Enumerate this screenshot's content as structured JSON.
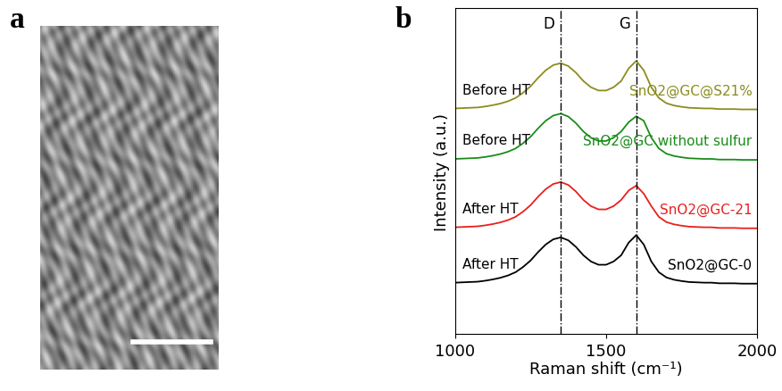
{
  "chart_data": [
    {
      "type": "image",
      "panel": "a"
    },
    {
      "type": "line",
      "panel": "b",
      "x_label": "Raman shift (cm⁻¹)",
      "y_label": "Intensity (a.u.)",
      "x": [
        1000,
        1025,
        1050,
        1075,
        1100,
        1125,
        1150,
        1175,
        1200,
        1225,
        1250,
        1275,
        1300,
        1325,
        1350,
        1375,
        1400,
        1425,
        1450,
        1475,
        1500,
        1525,
        1550,
        1575,
        1600,
        1625,
        1650,
        1675,
        1700,
        1725,
        1750,
        1775,
        1800,
        1825,
        1850,
        1875,
        1900,
        1925,
        1950,
        1975,
        2000
      ],
      "xlim": [
        1000,
        2000
      ],
      "xticks": [
        1000,
        1500,
        2000
      ],
      "ylim": [
        0,
        10
      ],
      "yticks": [],
      "tick_labels": "x",
      "grid": false,
      "reference_lines": [
        {
          "value": 1350,
          "label": "D"
        },
        {
          "value": 1600,
          "label": "G"
        }
      ],
      "series": [
        {
          "name": "SnO2@GC@S21%",
          "annotation": "Before HT",
          "color": "#8c8c1e",
          "values": [
            6.92,
            6.93,
            6.94,
            6.95,
            6.98,
            7.02,
            7.07,
            7.14,
            7.24,
            7.4,
            7.6,
            7.86,
            8.09,
            8.25,
            8.31,
            8.22,
            8.02,
            7.76,
            7.57,
            7.47,
            7.47,
            7.57,
            7.76,
            8.15,
            8.38,
            8.09,
            7.57,
            7.24,
            7.08,
            7.01,
            6.97,
            6.94,
            6.93,
            6.92,
            6.92,
            6.9,
            6.9,
            6.9,
            6.89,
            6.89,
            6.89
          ]
        },
        {
          "name": "SnO2@GC without sulfur",
          "annotation": "Before HT",
          "color": "#1a8c1a",
          "values": [
            5.37,
            5.38,
            5.39,
            5.4,
            5.43,
            5.47,
            5.52,
            5.59,
            5.69,
            5.85,
            6.05,
            6.31,
            6.54,
            6.7,
            6.76,
            6.67,
            6.47,
            6.21,
            6.02,
            5.92,
            5.92,
            6.02,
            6.21,
            6.5,
            6.68,
            6.54,
            6.02,
            5.69,
            5.53,
            5.46,
            5.42,
            5.39,
            5.38,
            5.37,
            5.37,
            5.35,
            5.35,
            5.35,
            5.34,
            5.34,
            5.34
          ]
        },
        {
          "name": "SnO2@GC-21",
          "annotation": "After HT",
          "color": "#e8201e",
          "values": [
            3.27,
            3.28,
            3.29,
            3.3,
            3.33,
            3.37,
            3.42,
            3.49,
            3.59,
            3.75,
            3.95,
            4.21,
            4.44,
            4.6,
            4.66,
            4.57,
            4.37,
            4.11,
            3.92,
            3.82,
            3.82,
            3.92,
            4.11,
            4.4,
            4.55,
            4.3,
            3.92,
            3.59,
            3.43,
            3.36,
            3.32,
            3.29,
            3.28,
            3.27,
            3.27,
            3.25,
            3.25,
            3.25,
            3.24,
            3.24,
            3.24
          ]
        },
        {
          "name": "SnO2@GC-0",
          "annotation": "After HT",
          "color": "#000000",
          "values": [
            1.57,
            1.58,
            1.59,
            1.6,
            1.63,
            1.67,
            1.72,
            1.79,
            1.89,
            2.05,
            2.25,
            2.51,
            2.74,
            2.9,
            2.96,
            2.87,
            2.67,
            2.41,
            2.22,
            2.12,
            2.12,
            2.22,
            2.41,
            2.8,
            3.03,
            2.74,
            2.22,
            1.89,
            1.73,
            1.66,
            1.62,
            1.59,
            1.58,
            1.57,
            1.57,
            1.55,
            1.55,
            1.55,
            1.54,
            1.54,
            1.54
          ]
        }
      ]
    }
  ]
}
